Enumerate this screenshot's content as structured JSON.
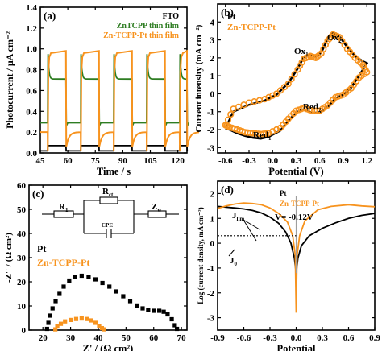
{
  "colors": {
    "black": "#000000",
    "green": "#2e7d22",
    "orange": "#f7931e",
    "grey": "#9e9e9e"
  },
  "chart_data": [
    {
      "panel": "(a)",
      "type": "line",
      "xlabel": "Time / s",
      "ylabel": "Photocurrent / μA cm⁻²",
      "xlim": [
        45,
        125
      ],
      "ylim": [
        0,
        1.4
      ],
      "xticks": [
        45,
        60,
        75,
        90,
        105,
        120
      ],
      "yticks": [
        0.0,
        0.2,
        0.4,
        0.6,
        0.8,
        1.0,
        1.2,
        1.4
      ],
      "light_on_intervals": [
        [
          49,
          59
        ],
        [
          67,
          77
        ],
        [
          85,
          95
        ],
        [
          103,
          113
        ],
        [
          121,
          125
        ]
      ],
      "series": [
        {
          "name": "FTO",
          "dark": 0.02,
          "light": 0.07
        },
        {
          "name": "ZnTCPP thin film",
          "dark": 0.29,
          "spike": 0.95,
          "light_steady": 0.71
        },
        {
          "name": "Zn-TCPP-Pt thin film",
          "dark": 0.2,
          "spike": 0.02,
          "light_steady": 0.98,
          "off_undershoot": 0.06
        }
      ]
    },
    {
      "panel": "(b)",
      "type": "line",
      "xlabel": "Potential (V)",
      "ylabel": "Current intensity (mA cm⁻²)",
      "xlim": [
        -0.7,
        1.3
      ],
      "ylim": [
        -3.3,
        5.0
      ],
      "xticks": [
        -0.6,
        -0.3,
        0.0,
        0.3,
        0.6,
        0.9,
        1.2
      ],
      "yticks": [
        -3,
        -2,
        -1,
        0,
        1,
        2,
        3,
        4
      ],
      "legend": [
        "Pt",
        "Zn-TCPP-Pt"
      ],
      "annotations": [
        {
          "text": "Ox",
          "sub": "1"
        },
        {
          "text": "Ox",
          "sub": "2"
        },
        {
          "text": "Red",
          "sub": "1"
        },
        {
          "text": "Red",
          "sub": "2"
        }
      ],
      "series": [
        {
          "name": "Pt",
          "forward": [
            [
              -0.6,
              -1.93
            ],
            [
              -0.5,
              -1.0
            ],
            [
              -0.3,
              -0.62
            ],
            [
              -0.1,
              -0.38
            ],
            [
              0.05,
              -0.05
            ],
            [
              0.2,
              0.6
            ],
            [
              0.32,
              1.4
            ],
            [
              0.4,
              2.07
            ],
            [
              0.48,
              2.2
            ],
            [
              0.55,
              2.05
            ],
            [
              0.62,
              2.3
            ],
            [
              0.7,
              3.05
            ],
            [
              0.77,
              3.4
            ],
            [
              0.85,
              3.2
            ],
            [
              0.95,
              2.6
            ],
            [
              1.05,
              2.1
            ],
            [
              1.15,
              1.8
            ],
            [
              1.2,
              1.7
            ]
          ],
          "reverse": [
            [
              1.2,
              1.7
            ],
            [
              1.1,
              1.0
            ],
            [
              1.0,
              0.35
            ],
            [
              0.9,
              -0.05
            ],
            [
              0.8,
              -0.25
            ],
            [
              0.7,
              -0.75
            ],
            [
              0.6,
              -1.05
            ],
            [
              0.5,
              -1.07
            ],
            [
              0.4,
              -0.85
            ],
            [
              0.3,
              -1.05
            ],
            [
              0.2,
              -1.5
            ],
            [
              0.1,
              -2.05
            ],
            [
              -0.05,
              -2.4
            ],
            [
              -0.15,
              -2.5
            ],
            [
              -0.25,
              -2.45
            ],
            [
              -0.35,
              -2.35
            ],
            [
              -0.45,
              -2.2
            ],
            [
              -0.55,
              -2.0
            ],
            [
              -0.6,
              -1.93
            ]
          ]
        },
        {
          "name": "Zn-TCPP-Pt",
          "forward": [
            [
              -0.6,
              -1.75
            ],
            [
              -0.5,
              -0.85
            ],
            [
              -0.3,
              -0.5
            ],
            [
              -0.1,
              -0.3
            ],
            [
              0.05,
              0.0
            ],
            [
              0.2,
              0.55
            ],
            [
              0.32,
              1.35
            ],
            [
              0.4,
              1.95
            ],
            [
              0.48,
              2.1
            ],
            [
              0.55,
              2.0
            ],
            [
              0.62,
              2.25
            ],
            [
              0.7,
              2.95
            ],
            [
              0.77,
              3.3
            ],
            [
              0.85,
              3.15
            ],
            [
              0.95,
              2.5
            ],
            [
              1.05,
              2.0
            ],
            [
              1.15,
              1.6
            ],
            [
              1.2,
              1.2
            ]
          ],
          "reverse": [
            [
              1.2,
              1.2
            ],
            [
              1.1,
              0.9
            ],
            [
              1.0,
              0.3
            ],
            [
              0.9,
              -0.05
            ],
            [
              0.8,
              -0.2
            ],
            [
              0.7,
              -0.65
            ],
            [
              0.6,
              -0.95
            ],
            [
              0.5,
              -0.95
            ],
            [
              0.4,
              -0.8
            ],
            [
              0.3,
              -0.95
            ],
            [
              0.2,
              -1.4
            ],
            [
              0.1,
              -1.9
            ],
            [
              -0.05,
              -2.2
            ],
            [
              -0.15,
              -2.25
            ],
            [
              -0.25,
              -2.2
            ],
            [
              -0.35,
              -2.15
            ],
            [
              -0.45,
              -2.0
            ],
            [
              -0.55,
              -1.85
            ],
            [
              -0.6,
              -1.75
            ]
          ]
        }
      ]
    },
    {
      "panel": "(c)",
      "type": "scatter",
      "xlabel": "Z' / (Ω cm²)",
      "ylabel": "-Z'' / (Ω cm²)",
      "xlim": [
        15,
        72
      ],
      "ylim": [
        0,
        60
      ],
      "xticks": [
        20,
        30,
        40,
        50,
        60,
        70
      ],
      "yticks": [
        0,
        10,
        20,
        30,
        40,
        50,
        60
      ],
      "legend": [
        "Pt",
        "Zn-TCPP-Pt"
      ],
      "circuit": {
        "R1": "R",
        "R1_sub": "1",
        "Rct": "R",
        "Rct_sub": "ct",
        "CPE": "CPE",
        "Zw": "Z",
        "Zw_sub": "w"
      },
      "series": [
        {
          "name": "Pt",
          "points": [
            [
              21.5,
              0.5
            ],
            [
              22,
              3
            ],
            [
              22.6,
              6
            ],
            [
              23.5,
              9
            ],
            [
              24.6,
              12
            ],
            [
              26,
              15
            ],
            [
              27.5,
              18
            ],
            [
              29.5,
              20.5
            ],
            [
              31.5,
              22
            ],
            [
              34,
              22.5
            ],
            [
              36.5,
              22
            ],
            [
              39,
              21
            ],
            [
              41.5,
              19.5
            ],
            [
              44,
              18
            ],
            [
              46.5,
              16
            ],
            [
              49,
              14
            ],
            [
              51.5,
              12
            ],
            [
              54,
              10.2
            ],
            [
              56,
              9
            ],
            [
              58,
              8.2
            ],
            [
              60,
              8
            ],
            [
              62,
              8
            ],
            [
              63.6,
              7.6
            ],
            [
              65,
              6.5
            ],
            [
              66.5,
              4.5
            ],
            [
              67.6,
              2
            ],
            [
              68.4,
              0.5
            ]
          ]
        },
        {
          "name": "Zn-TCPP-Pt",
          "points": [
            [
              24.5,
              0.3
            ],
            [
              25.2,
              1.5
            ],
            [
              26.5,
              2.6
            ],
            [
              28,
              3.6
            ],
            [
              30,
              4.2
            ],
            [
              32,
              4.6
            ],
            [
              34,
              4.8
            ],
            [
              36,
              4.6
            ],
            [
              37.5,
              4
            ],
            [
              39,
              3
            ],
            [
              40.3,
              1.8
            ],
            [
              41.3,
              0.8
            ],
            [
              42,
              0.3
            ]
          ]
        }
      ]
    },
    {
      "panel": "(d)",
      "type": "line",
      "xlabel": "Potential",
      "ylabel": "Log (current density, mA cm⁻²)",
      "xlim": [
        -0.9,
        0.9
      ],
      "ylim": [
        -3.5,
        2.5
      ],
      "xticks": [
        -0.9,
        -0.6,
        -0.3,
        0.0,
        0.3,
        0.6,
        0.9
      ],
      "yticks": [
        -3,
        -2,
        -1,
        0,
        1,
        2
      ],
      "legend": [
        "Pt",
        "Zn-TCPP-Pt"
      ],
      "annotations": [
        {
          "text": "J",
          "sub": "lim"
        },
        {
          "text": "J",
          "sub": "0"
        },
        {
          "text": "V= -0.12V"
        }
      ],
      "J0_log": 0.3,
      "series": [
        {
          "name": "Pt",
          "points": [
            [
              -0.9,
              1.48
            ],
            [
              -0.8,
              1.45
            ],
            [
              -0.7,
              1.42
            ],
            [
              -0.6,
              1.38
            ],
            [
              -0.5,
              1.32
            ],
            [
              -0.4,
              1.22
            ],
            [
              -0.3,
              1.05
            ],
            [
              -0.2,
              0.8
            ],
            [
              -0.12,
              0.45
            ],
            [
              -0.06,
              0.0
            ],
            [
              -0.02,
              -0.6
            ],
            [
              0.0,
              -1.2
            ],
            [
              0.02,
              -0.6
            ],
            [
              0.06,
              -0.1
            ],
            [
              0.15,
              0.3
            ],
            [
              0.3,
              0.6
            ],
            [
              0.45,
              0.82
            ],
            [
              0.6,
              1.0
            ],
            [
              0.75,
              1.12
            ],
            [
              0.9,
              1.2
            ]
          ]
        },
        {
          "name": "Zn-TCPP-Pt",
          "points": [
            [
              -0.9,
              1.4
            ],
            [
              -0.8,
              1.5
            ],
            [
              -0.7,
              1.58
            ],
            [
              -0.6,
              1.62
            ],
            [
              -0.5,
              1.6
            ],
            [
              -0.4,
              1.55
            ],
            [
              -0.3,
              1.42
            ],
            [
              -0.2,
              1.2
            ],
            [
              -0.1,
              0.85
            ],
            [
              -0.04,
              0.3
            ],
            [
              -0.01,
              -0.5
            ],
            [
              0.0,
              -2.8
            ],
            [
              0.01,
              -0.5
            ],
            [
              0.04,
              0.3
            ],
            [
              0.1,
              0.9
            ],
            [
              0.25,
              1.35
            ],
            [
              0.4,
              1.48
            ],
            [
              0.6,
              1.55
            ],
            [
              0.75,
              1.5
            ],
            [
              0.9,
              1.47
            ]
          ]
        }
      ]
    }
  ]
}
